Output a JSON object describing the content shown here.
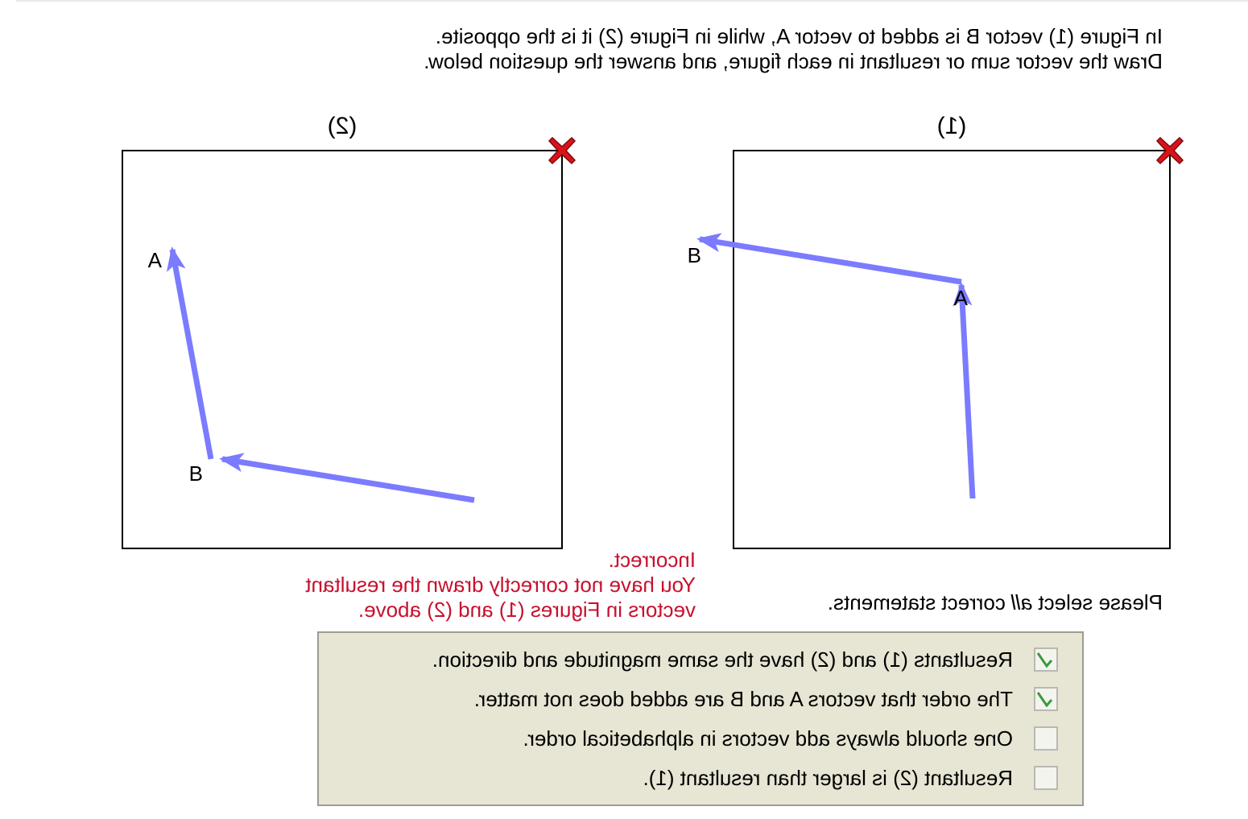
{
  "instructions": {
    "line1": "In Figure (1) vector B is added to vector A, while in Figure (2) it is the opposite.",
    "line2": "Draw the vector sum or resultant in each figure, and answer the question below."
  },
  "figures": [
    {
      "label": "(1)",
      "vectors": [
        {
          "name": "A",
          "label": "A",
          "color": "#7b7bff"
        },
        {
          "name": "B",
          "label": "B",
          "color": "#7b7bff"
        }
      ],
      "close_icon": "close-icon",
      "close_color": "#d7141a"
    },
    {
      "label": "(2)",
      "vectors": [
        {
          "name": "A",
          "label": "A",
          "color": "#7b7bff"
        },
        {
          "name": "B",
          "label": "B",
          "color": "#7b7bff"
        }
      ],
      "close_icon": "close-icon",
      "close_color": "#d7141a"
    }
  ],
  "feedback": {
    "status": "Incorrect.",
    "line1": "You have not correctly drawn the resultant",
    "line2": "vectors in Figures (1) and (2) above.",
    "color": "#c8102e"
  },
  "question": {
    "prompt_before": "Please select ",
    "prompt_emphasis": "all",
    "prompt_after": " correct statements.",
    "options": [
      {
        "label": "Resultants (1) and (2) have the same magnitude and direction.",
        "checked": true
      },
      {
        "label": "The order that vectors A and B are added does not matter.",
        "checked": true
      },
      {
        "label": "One should always add vectors in alphabetical order.",
        "checked": false
      },
      {
        "label": "Resultant (2) is larger than resultant (1).",
        "checked": false
      }
    ]
  }
}
